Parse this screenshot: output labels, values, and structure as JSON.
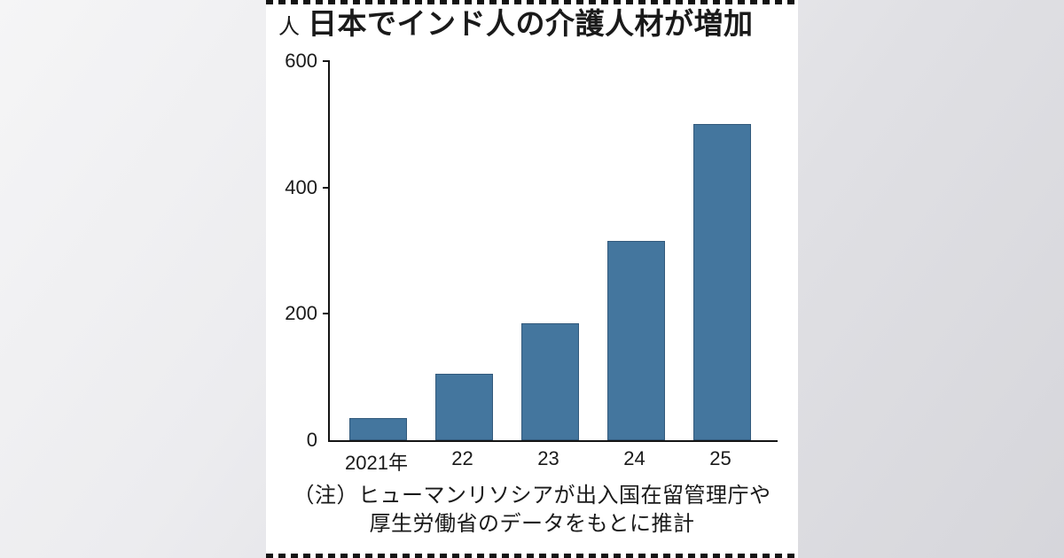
{
  "chart": {
    "unit_label": "人",
    "title": "日本でインド人の介護人材が増加",
    "note_line1": "（注）ヒューマンリソシアが出入国在留管理庁や",
    "note_line2": "厚生労働省のデータをもとに推計"
  },
  "chart_data": {
    "type": "bar",
    "categories": [
      "2021年",
      "22",
      "23",
      "24",
      "25"
    ],
    "values": [
      35,
      105,
      185,
      315,
      500
    ],
    "title": "日本でインド人の介護人材が増加",
    "xlabel": "",
    "ylabel": "人",
    "ylim": [
      0,
      600
    ],
    "yticks": [
      0,
      200,
      400,
      600
    ],
    "grid": false,
    "legend": false,
    "bar_color": "#44769e",
    "axis_color": "#141414"
  }
}
